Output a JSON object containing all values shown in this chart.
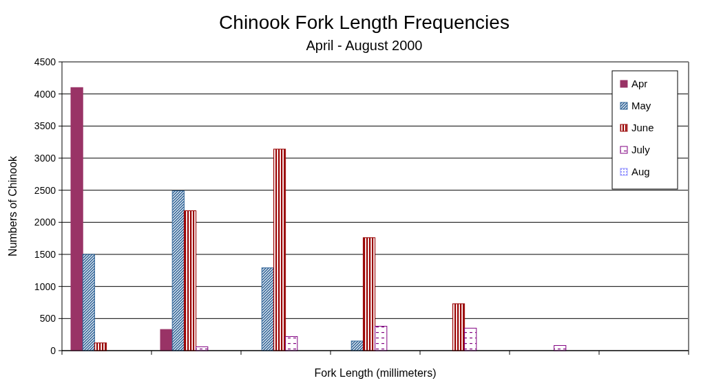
{
  "chart_data": {
    "type": "bar",
    "title": "Chinook Fork Length Frequencies",
    "subtitle": "April - August 2000",
    "xlabel": "Fork Length (millimeters)",
    "ylabel": "Numbers of Chinook",
    "categories": [
      null,
      null,
      null,
      null,
      null,
      null,
      null
    ],
    "series": [
      {
        "name": "Apr",
        "color": "#993366",
        "values": [
          4100,
          330,
          null,
          null,
          null,
          null,
          null
        ]
      },
      {
        "name": "May",
        "color": "#336699",
        "values": [
          1500,
          2490,
          1290,
          150,
          null,
          null,
          null
        ]
      },
      {
        "name": "June",
        "color": "#990000",
        "values": [
          120,
          2180,
          3140,
          1760,
          730,
          null,
          null
        ]
      },
      {
        "name": "July",
        "color": "#800080",
        "values": [
          null,
          60,
          220,
          380,
          350,
          80,
          null
        ]
      },
      {
        "name": "Aug",
        "color": "#9999ff",
        "values": [
          null,
          null,
          null,
          null,
          null,
          null,
          null
        ]
      }
    ],
    "ylim": [
      0,
      4500
    ],
    "yticks": [
      0,
      500,
      1000,
      1500,
      2000,
      2500,
      3000,
      3500,
      4000,
      4500
    ],
    "grid": "y",
    "legend": "top right"
  }
}
